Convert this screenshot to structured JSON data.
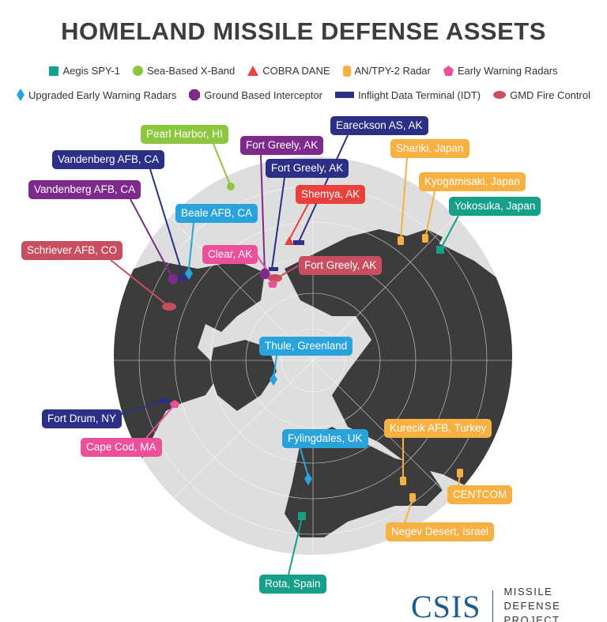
{
  "title": "HOMELAND MISSILE DEFENSE ASSETS",
  "colors": {
    "aegis": "#16a08a",
    "sbx": "#8dc63f",
    "cobra": "#e8403a",
    "antpy2": "#f7b142",
    "ewr": "#ec4f9b",
    "uewr": "#2aa3dc",
    "gbi": "#7d2a8c",
    "idt": "#2b2f86",
    "gmd": "#c94f60",
    "land": "#3c3c3c",
    "ocean": "#dcdcdc"
  },
  "legend": [
    {
      "icon": "square",
      "label": "Aegis SPY-1"
    },
    {
      "icon": "circle",
      "label": "Sea-Based X-Band"
    },
    {
      "icon": "triangle",
      "label": "COBRA DANE"
    },
    {
      "icon": "rounded-rect",
      "label": "AN/TPY-2 Radar"
    },
    {
      "icon": "pentagon",
      "label": "Early Warning Radars"
    },
    {
      "icon": "diamond",
      "label": "Upgraded Early Warning Radars"
    },
    {
      "icon": "octagon",
      "label": "Ground Based Interceptor"
    },
    {
      "icon": "bar",
      "label": "Inflight Data Terminal (IDT)"
    },
    {
      "icon": "ellipse",
      "label": "GMD Fire Control"
    }
  ],
  "sites": [
    {
      "label": "Pearl Harbor, HI",
      "type": "sbx"
    },
    {
      "label": "Fort Greely, AK",
      "type": "gbi"
    },
    {
      "label": "Eareckson AS, AK",
      "type": "idt"
    },
    {
      "label": "Vandenberg AFB, CA",
      "type": "idt"
    },
    {
      "label": "Fort Greely, AK",
      "type": "idt"
    },
    {
      "label": "Shariki, Japan",
      "type": "antpy2"
    },
    {
      "label": "Vandenberg AFB, CA",
      "type": "gbi"
    },
    {
      "label": "Shemya, AK",
      "type": "cobra"
    },
    {
      "label": "Kyogamisaki, Japan",
      "type": "antpy2"
    },
    {
      "label": "Beale AFB, CA",
      "type": "uewr"
    },
    {
      "label": "Yokosuka, Japan",
      "type": "aegis"
    },
    {
      "label": "Schriever AFB, CO",
      "type": "gmd"
    },
    {
      "label": "Clear, AK",
      "type": "ewr"
    },
    {
      "label": "Fort Greely, AK",
      "type": "gmd"
    },
    {
      "label": "Thule, Greenland",
      "type": "uewr"
    },
    {
      "label": "Fort Drum, NY",
      "type": "idt"
    },
    {
      "label": "Cape Cod, MA",
      "type": "ewr"
    },
    {
      "label": "Kurecik AFB, Turkey",
      "type": "antpy2"
    },
    {
      "label": "Fylingdales, UK",
      "type": "uewr"
    },
    {
      "label": "CENTCOM",
      "type": "antpy2"
    },
    {
      "label": "Negev Desert, Israel",
      "type": "antpy2"
    },
    {
      "label": "Rota, Spain",
      "type": "aegis"
    }
  ],
  "logo": {
    "org": "CSIS",
    "line1": "MISSILE DEFENSE",
    "line2": "PROJECT"
  }
}
